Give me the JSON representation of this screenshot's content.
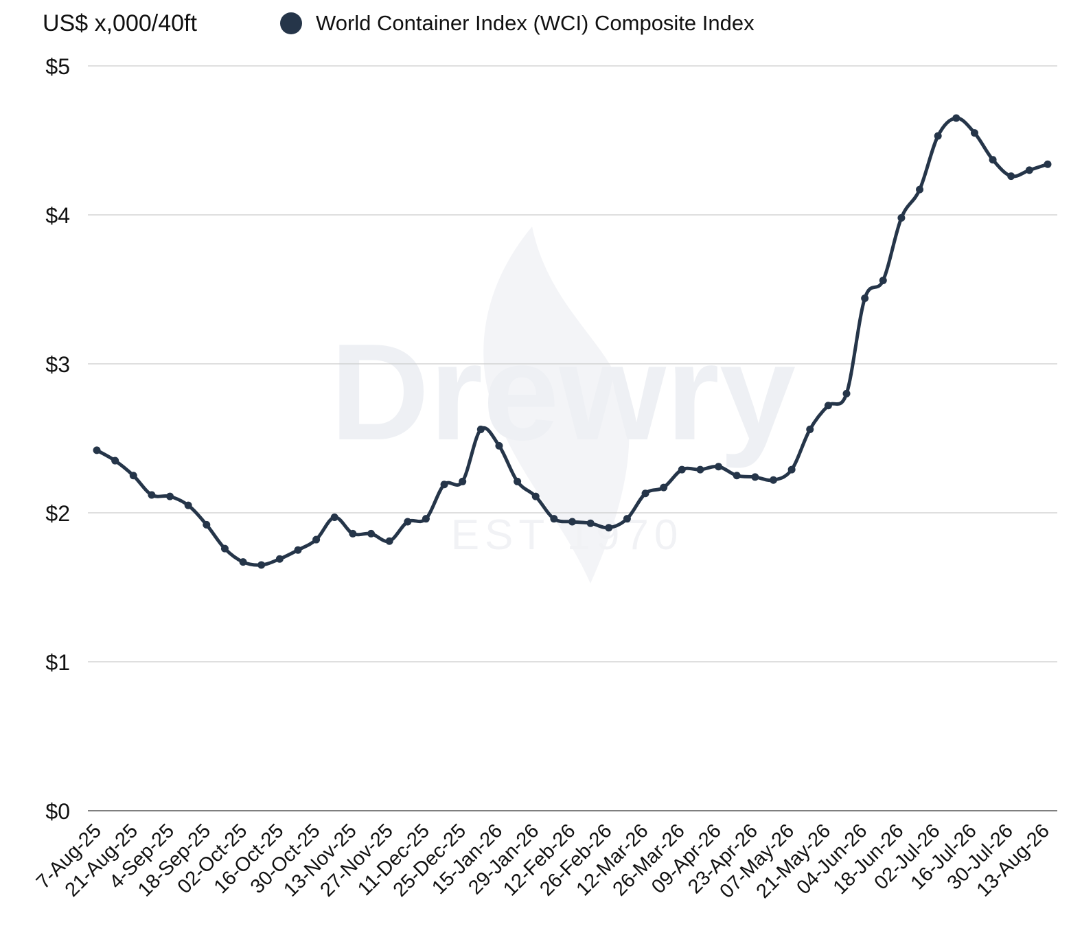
{
  "chart_data": {
    "type": "line",
    "unit_label": "US$ x,000/40ft",
    "watermark": {
      "brand": "Drewry",
      "established": "EST 1970"
    },
    "colors": {
      "series": "#253549",
      "grid": "#cccccc",
      "axis": "#555555"
    },
    "ylim": [
      0,
      5
    ],
    "y_ticks": [
      {
        "value": 0,
        "label": "$0"
      },
      {
        "value": 1,
        "label": "$1"
      },
      {
        "value": 2,
        "label": "$2"
      },
      {
        "value": 3,
        "label": "$3"
      },
      {
        "value": 4,
        "label": "$4"
      },
      {
        "value": 5,
        "label": "$5"
      }
    ],
    "x_tick_labels": [
      "7-Aug-25",
      "21-Aug-25",
      "4-Sep-25",
      "18-Sep-25",
      "02-Oct-25",
      "16-Oct-25",
      "30-Oct-25",
      "13-Nov-25",
      "27-Nov-25",
      "11-Dec-25",
      "25-Dec-25",
      "15-Jan-26",
      "29-Jan-26",
      "12-Feb-26",
      "26-Feb-26",
      "12-Mar-26",
      "26-Mar-26",
      "09-Apr-26",
      "23-Apr-26",
      "07-May-26",
      "21-May-26",
      "04-Jun-26",
      "18-Jun-26",
      "02-Jul-26",
      "16-Jul-26",
      "30-Jul-26",
      "13-Aug-26"
    ],
    "grid": true,
    "legend_position": "top",
    "series": [
      {
        "name": "World Container Index (WCI) Composite Index",
        "values": [
          2.42,
          2.35,
          2.25,
          2.12,
          2.11,
          2.05,
          1.92,
          1.76,
          1.67,
          1.65,
          1.69,
          1.75,
          1.82,
          1.97,
          1.86,
          1.86,
          1.81,
          1.94,
          1.96,
          2.19,
          2.21,
          2.56,
          2.45,
          2.21,
          2.11,
          1.96,
          1.94,
          1.93,
          1.9,
          1.96,
          2.13,
          2.17,
          2.29,
          2.29,
          2.31,
          2.25,
          2.24,
          2.22,
          2.29,
          2.56,
          2.72,
          2.8,
          3.44,
          3.56,
          3.98,
          4.17,
          4.53,
          4.65,
          4.55,
          4.37,
          4.26,
          4.3,
          4.34
        ]
      }
    ]
  }
}
